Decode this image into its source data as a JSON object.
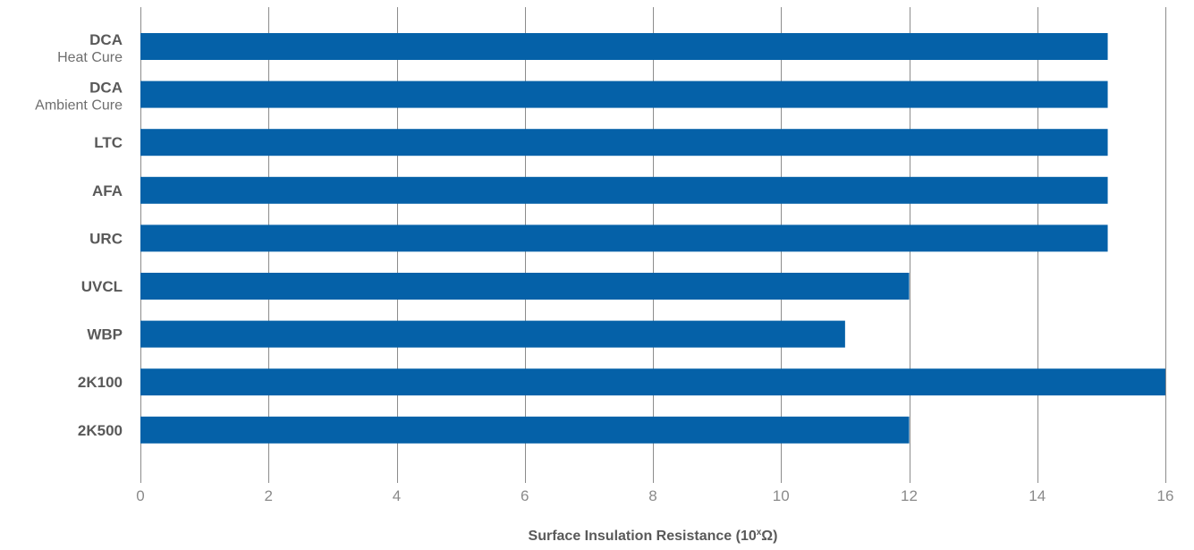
{
  "chart_data": {
    "type": "bar",
    "orientation": "horizontal",
    "categories": [
      {
        "name": "DCA",
        "sub": "Heat Cure"
      },
      {
        "name": "DCA",
        "sub": "Ambient Cure"
      },
      {
        "name": "LTC",
        "sub": ""
      },
      {
        "name": "AFA",
        "sub": ""
      },
      {
        "name": "URC",
        "sub": ""
      },
      {
        "name": "UVCL",
        "sub": ""
      },
      {
        "name": "WBP",
        "sub": ""
      },
      {
        "name": "2K100",
        "sub": ""
      },
      {
        "name": "2K500",
        "sub": ""
      }
    ],
    "values": [
      15.1,
      15.1,
      15.1,
      15.1,
      15.1,
      12,
      11,
      16,
      12
    ],
    "xlabel": {
      "text": "Surface Insulation Resistance (10",
      "sup": "x",
      "suffix": "Ω)"
    },
    "ylabel": "",
    "xlim": [
      0,
      16
    ],
    "xticks": [
      0,
      2,
      4,
      6,
      8,
      10,
      12,
      14,
      16
    ],
    "grid": "vertical",
    "bar_color": "#0561a8"
  }
}
